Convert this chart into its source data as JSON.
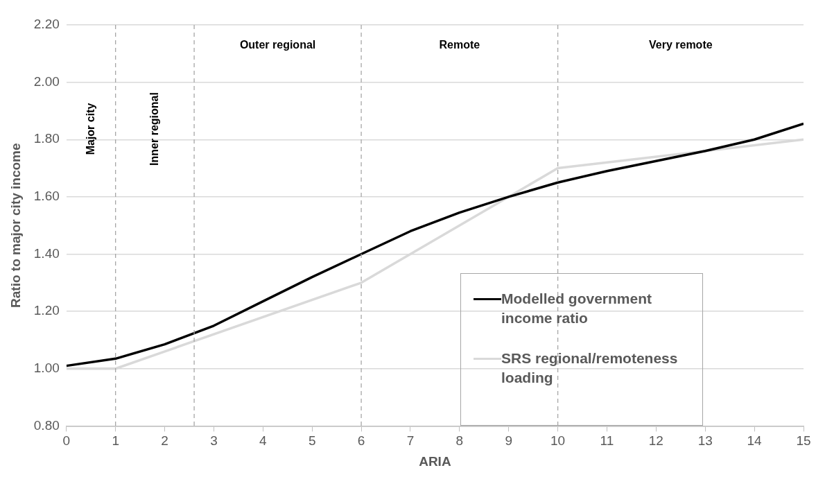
{
  "chart_data": {
    "type": "line",
    "xlabel": "ARIA",
    "ylabel": "Ratio to major city income",
    "xlim": [
      0,
      15
    ],
    "xticks": [
      0,
      1,
      2,
      3,
      4,
      5,
      6,
      7,
      8,
      9,
      10,
      11,
      12,
      13,
      14,
      15
    ],
    "ylim": [
      0.8,
      2.2
    ],
    "yticks": [
      {
        "value": 0.8,
        "label": "0.80"
      },
      {
        "value": 1.0,
        "label": "1.00"
      },
      {
        "value": 1.2,
        "label": "1.20"
      },
      {
        "value": 1.4,
        "label": "1.40"
      },
      {
        "value": 1.6,
        "label": "1.60"
      },
      {
        "value": 1.8,
        "label": "1.80"
      },
      {
        "value": 2.0,
        "label": "2.00"
      },
      {
        "value": 2.2,
        "label": "2.20"
      }
    ],
    "series": [
      {
        "name": "Modelled government income ratio",
        "color": "#000000",
        "x": [
          0,
          1,
          2,
          3,
          4,
          5,
          6,
          7,
          8,
          9,
          10,
          11,
          12,
          13,
          14,
          15
        ],
        "values": [
          1.01,
          1.035,
          1.085,
          1.15,
          1.235,
          1.32,
          1.4,
          1.48,
          1.545,
          1.6,
          1.65,
          1.69,
          1.725,
          1.76,
          1.8,
          1.855
        ]
      },
      {
        "name": "SRS regional/remoteness loading",
        "color": "#d9d9d9",
        "x": [
          0,
          1,
          6,
          10,
          15
        ],
        "values": [
          1.0,
          1.0,
          1.3,
          1.7,
          1.8
        ]
      }
    ],
    "ref_lines": [
      {
        "axis": "x",
        "value": 1,
        "color": "#a6a6a6",
        "line_style": "dashed"
      },
      {
        "axis": "x",
        "value": 2.6,
        "color": "#a6a6a6",
        "line_style": "dashed"
      },
      {
        "axis": "x",
        "value": 6,
        "color": "#a6a6a6",
        "line_style": "dashed"
      },
      {
        "axis": "x",
        "value": 10,
        "color": "#a6a6a6",
        "line_style": "dashed"
      }
    ],
    "annotations": [
      "Major city",
      "Inner regional",
      "Outer regional",
      "Remote",
      "Very remote"
    ],
    "grid": "y",
    "legend": "bottom right",
    "marker": "none",
    "line_style": "solid"
  }
}
